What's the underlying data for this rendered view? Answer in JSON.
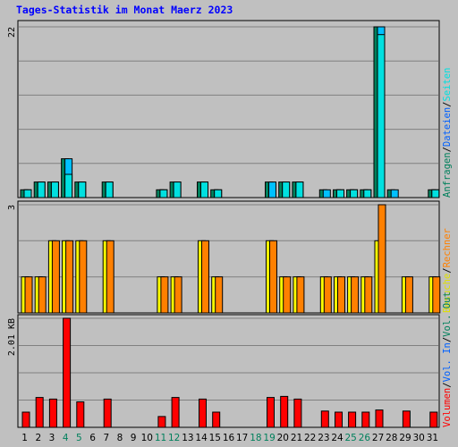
{
  "title": "Tages-Statistik im Monat Maerz 2023",
  "colors": {
    "background": "#c0c0c0",
    "grid": "#808080",
    "title": "#0000ff",
    "hits": "#00805c",
    "files": "#00c0ff",
    "pages": "#00e0e0",
    "visits": "#ffff00",
    "sites": "#ff8000",
    "volume": "#ff0000",
    "weekend": "#00805c",
    "weekday": "#000000"
  },
  "chart_data": [
    {
      "type": "bar",
      "name": "requests",
      "ymax_label": "22",
      "ylim": [
        0,
        22
      ],
      "categories": [
        "1",
        "2",
        "3",
        "4",
        "5",
        "6",
        "7",
        "8",
        "9",
        "10",
        "11",
        "12",
        "13",
        "14",
        "15",
        "16",
        "17",
        "18",
        "19",
        "20",
        "21",
        "22",
        "23",
        "24",
        "25",
        "26",
        "27",
        "28",
        "29",
        "30",
        "31"
      ],
      "weekend_days": [
        4,
        5,
        11,
        12,
        18,
        19,
        25,
        26
      ],
      "series": [
        {
          "name": "Anfragen",
          "values": [
            1,
            2,
            2,
            5,
            2,
            0,
            2,
            0,
            0,
            0,
            1,
            2,
            0,
            2,
            1,
            0,
            0,
            0,
            2,
            2,
            2,
            0,
            1,
            1,
            1,
            1,
            22,
            1,
            0,
            0,
            1
          ]
        },
        {
          "name": "Dateien",
          "values": [
            1,
            2,
            2,
            5,
            2,
            0,
            2,
            0,
            0,
            0,
            1,
            2,
            0,
            2,
            1,
            0,
            0,
            0,
            2,
            2,
            2,
            0,
            1,
            1,
            1,
            1,
            22,
            1,
            0,
            0,
            1
          ]
        },
        {
          "name": "Seiten",
          "values": [
            1,
            2,
            2,
            3,
            2,
            0,
            2,
            0,
            0,
            0,
            1,
            2,
            0,
            2,
            1,
            0,
            0,
            0,
            0,
            2,
            2,
            0,
            0,
            1,
            1,
            1,
            21,
            0,
            0,
            0,
            1
          ]
        }
      ],
      "legend": [
        {
          "label": "Anfragen",
          "color": "#00805c"
        },
        {
          "label": "/",
          "color": "#000000"
        },
        {
          "label": "Dateien",
          "color": "#0060ff"
        },
        {
          "label": "/",
          "color": "#000000"
        },
        {
          "label": "Seiten",
          "color": "#00e0e0"
        }
      ]
    },
    {
      "type": "bar",
      "name": "visits",
      "ymax_label": "3",
      "ylim": [
        0,
        3
      ],
      "series": [
        {
          "name": "Besuche",
          "values": [
            1,
            1,
            2,
            2,
            2,
            0,
            2,
            0,
            0,
            0,
            1,
            1,
            0,
            2,
            1,
            0,
            0,
            0,
            2,
            1,
            1,
            0,
            1,
            1,
            1,
            1,
            2,
            0,
            1,
            0,
            1
          ]
        },
        {
          "name": "Rechner",
          "values": [
            1,
            1,
            2,
            2,
            2,
            0,
            2,
            0,
            0,
            0,
            1,
            1,
            0,
            2,
            1,
            0,
            0,
            0,
            2,
            1,
            1,
            0,
            1,
            1,
            1,
            1,
            3,
            0,
            1,
            0,
            1
          ]
        }
      ],
      "legend": [
        {
          "label": "Besuche",
          "color": "#e0e000"
        },
        {
          "label": "/",
          "color": "#000000"
        },
        {
          "label": "Rechner",
          "color": "#ff8000"
        }
      ]
    },
    {
      "type": "bar",
      "name": "volume",
      "ymax_label": "2.01 KB",
      "ylim": [
        0,
        2.01
      ],
      "series": [
        {
          "name": "Volumen",
          "values": [
            0.28,
            0.55,
            0.52,
            2.01,
            0.47,
            0,
            0.52,
            0,
            0,
            0,
            0.2,
            0.55,
            0,
            0.52,
            0.28,
            0,
            0,
            0,
            0.55,
            0.57,
            0.52,
            0,
            0.3,
            0.28,
            0.28,
            0.28,
            0.32,
            0,
            0.3,
            0,
            0.28
          ]
        }
      ],
      "legend": [
        {
          "label": "Volumen",
          "color": "#ff0000"
        },
        {
          "label": "/",
          "color": "#000000"
        },
        {
          "label": "Vol. In",
          "color": "#0060ff"
        },
        {
          "label": "/",
          "color": "#000000"
        },
        {
          "label": "Vol. Out",
          "color": "#00805c"
        }
      ]
    }
  ]
}
